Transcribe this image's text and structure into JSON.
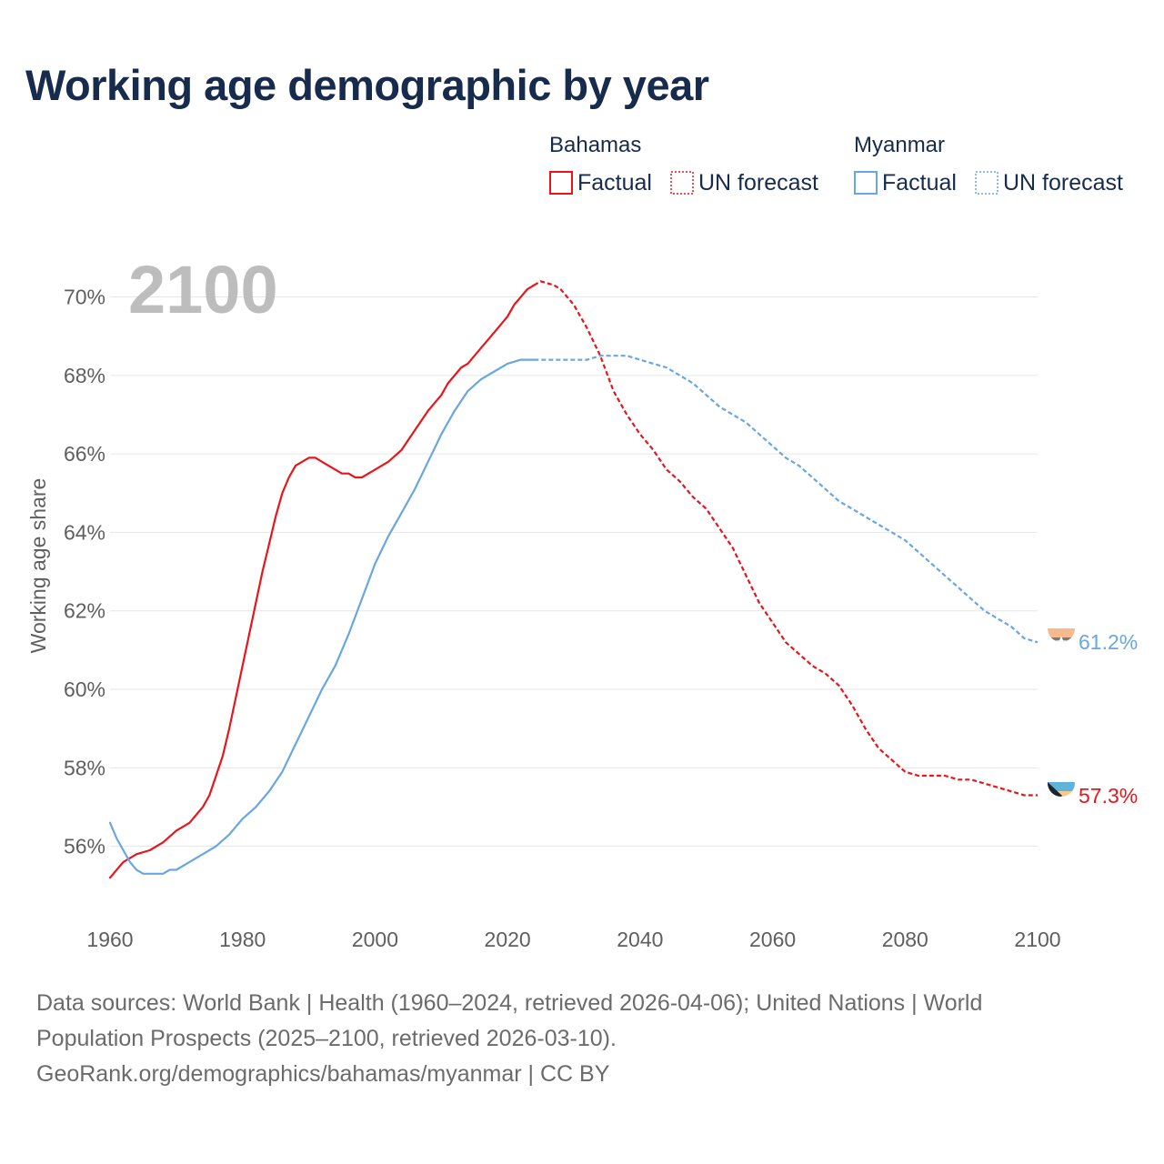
{
  "title": "Working age demographic by year",
  "footer": {
    "line1": "Data sources: World Bank | Health (1960–2024, retrieved 2026-04-06); United Nations | World",
    "line2": "Population Prospects (2025–2100, retrieved 2026-03-10).",
    "line3": "GeoRank.org/demographics/bahamas/myanmar | CC BY"
  },
  "colors": {
    "bahamas": "#e8151b",
    "myanmar": "#6aa6e0",
    "year": "#bdbdbd",
    "axis_text": "#5f5f5f",
    "grid": "#e6e6e6",
    "title": "#172b4d"
  },
  "chart_data": {
    "type": "line",
    "title": "Working age demographic by year",
    "ylabel": "Working age share",
    "xlabel": "",
    "year_label": "2100",
    "xlim": [
      1960,
      2100
    ],
    "ylim": [
      54.3,
      70.8
    ],
    "x_ticks": [
      1960,
      1980,
      2000,
      2020,
      2040,
      2060,
      2080,
      2100
    ],
    "x_tick_labels": [
      "1960",
      "1980",
      "2000",
      "2020",
      "2040",
      "2060",
      "2080",
      "2100"
    ],
    "y_ticks": [
      56,
      58,
      60,
      62,
      64,
      66,
      68,
      70
    ],
    "y_tick_labels": [
      "56%",
      "58%",
      "60%",
      "62%",
      "64%",
      "66%",
      "68%",
      "70%"
    ],
    "legend": {
      "placement": "top-right",
      "groups": [
        {
          "name": "Bahamas",
          "color": "#e8151b",
          "factual": "Factual",
          "forecast": "UN forecast"
        },
        {
          "name": "Myanmar",
          "color": "#6aa6e0",
          "factual": "Factual",
          "forecast": "UN forecast"
        }
      ]
    },
    "series": [
      {
        "name": "Bahamas",
        "color": "#e8151b",
        "end_label": "57.3%",
        "flag": "bahamas",
        "factual_range": [
          1960,
          2024
        ],
        "forecast_range": [
          2025,
          2100
        ],
        "points": [
          [
            1960,
            55.2
          ],
          [
            1962,
            55.6
          ],
          [
            1964,
            55.8
          ],
          [
            1966,
            55.9
          ],
          [
            1968,
            56.1
          ],
          [
            1970,
            56.4
          ],
          [
            1972,
            56.6
          ],
          [
            1974,
            57.0
          ],
          [
            1975,
            57.3
          ],
          [
            1976,
            57.8
          ],
          [
            1977,
            58.3
          ],
          [
            1978,
            59.0
          ],
          [
            1979,
            59.8
          ],
          [
            1980,
            60.6
          ],
          [
            1981,
            61.4
          ],
          [
            1982,
            62.2
          ],
          [
            1983,
            63.0
          ],
          [
            1984,
            63.7
          ],
          [
            1985,
            64.4
          ],
          [
            1986,
            65.0
          ],
          [
            1987,
            65.4
          ],
          [
            1988,
            65.7
          ],
          [
            1990,
            65.9
          ],
          [
            1991,
            65.9
          ],
          [
            1992,
            65.8
          ],
          [
            1994,
            65.6
          ],
          [
            1995,
            65.5
          ],
          [
            1996,
            65.5
          ],
          [
            1997,
            65.4
          ],
          [
            1998,
            65.4
          ],
          [
            2000,
            65.6
          ],
          [
            2002,
            65.8
          ],
          [
            2004,
            66.1
          ],
          [
            2006,
            66.6
          ],
          [
            2008,
            67.1
          ],
          [
            2010,
            67.5
          ],
          [
            2011,
            67.8
          ],
          [
            2013,
            68.2
          ],
          [
            2014,
            68.3
          ],
          [
            2016,
            68.7
          ],
          [
            2018,
            69.1
          ],
          [
            2020,
            69.5
          ],
          [
            2021,
            69.8
          ],
          [
            2023,
            70.2
          ],
          [
            2024,
            70.3
          ],
          [
            2025,
            70.4
          ],
          [
            2027,
            70.3
          ],
          [
            2028,
            70.2
          ],
          [
            2030,
            69.8
          ],
          [
            2032,
            69.2
          ],
          [
            2034,
            68.5
          ],
          [
            2036,
            67.6
          ],
          [
            2038,
            67.0
          ],
          [
            2040,
            66.5
          ],
          [
            2042,
            66.1
          ],
          [
            2044,
            65.6
          ],
          [
            2046,
            65.3
          ],
          [
            2048,
            64.9
          ],
          [
            2050,
            64.6
          ],
          [
            2052,
            64.1
          ],
          [
            2054,
            63.6
          ],
          [
            2056,
            62.9
          ],
          [
            2058,
            62.2
          ],
          [
            2060,
            61.7
          ],
          [
            2062,
            61.2
          ],
          [
            2064,
            60.9
          ],
          [
            2066,
            60.6
          ],
          [
            2068,
            60.4
          ],
          [
            2070,
            60.1
          ],
          [
            2072,
            59.6
          ],
          [
            2074,
            59.0
          ],
          [
            2076,
            58.5
          ],
          [
            2078,
            58.2
          ],
          [
            2080,
            57.9
          ],
          [
            2082,
            57.8
          ],
          [
            2084,
            57.8
          ],
          [
            2086,
            57.8
          ],
          [
            2088,
            57.7
          ],
          [
            2090,
            57.7
          ],
          [
            2092,
            57.6
          ],
          [
            2094,
            57.5
          ],
          [
            2096,
            57.4
          ],
          [
            2098,
            57.3
          ],
          [
            2100,
            57.3
          ]
        ]
      },
      {
        "name": "Myanmar",
        "color": "#6aa6e0",
        "end_label": "61.2%",
        "flag": "myanmar",
        "factual_range": [
          1960,
          2024
        ],
        "forecast_range": [
          2025,
          2100
        ],
        "points": [
          [
            1960,
            56.6
          ],
          [
            1961,
            56.2
          ],
          [
            1962,
            55.9
          ],
          [
            1963,
            55.6
          ],
          [
            1964,
            55.4
          ],
          [
            1965,
            55.3
          ],
          [
            1966,
            55.3
          ],
          [
            1967,
            55.3
          ],
          [
            1968,
            55.3
          ],
          [
            1969,
            55.4
          ],
          [
            1970,
            55.4
          ],
          [
            1972,
            55.6
          ],
          [
            1974,
            55.8
          ],
          [
            1976,
            56.0
          ],
          [
            1978,
            56.3
          ],
          [
            1980,
            56.7
          ],
          [
            1982,
            57.0
          ],
          [
            1984,
            57.4
          ],
          [
            1986,
            57.9
          ],
          [
            1988,
            58.6
          ],
          [
            1990,
            59.3
          ],
          [
            1992,
            60.0
          ],
          [
            1994,
            60.6
          ],
          [
            1996,
            61.4
          ],
          [
            1998,
            62.3
          ],
          [
            2000,
            63.2
          ],
          [
            2002,
            63.9
          ],
          [
            2004,
            64.5
          ],
          [
            2006,
            65.1
          ],
          [
            2008,
            65.8
          ],
          [
            2010,
            66.5
          ],
          [
            2012,
            67.1
          ],
          [
            2014,
            67.6
          ],
          [
            2016,
            67.9
          ],
          [
            2018,
            68.1
          ],
          [
            2020,
            68.3
          ],
          [
            2022,
            68.4
          ],
          [
            2024,
            68.4
          ],
          [
            2026,
            68.4
          ],
          [
            2028,
            68.4
          ],
          [
            2030,
            68.4
          ],
          [
            2032,
            68.4
          ],
          [
            2034,
            68.5
          ],
          [
            2036,
            68.5
          ],
          [
            2038,
            68.5
          ],
          [
            2040,
            68.4
          ],
          [
            2042,
            68.3
          ],
          [
            2044,
            68.2
          ],
          [
            2046,
            68.0
          ],
          [
            2048,
            67.8
          ],
          [
            2050,
            67.5
          ],
          [
            2052,
            67.2
          ],
          [
            2054,
            67.0
          ],
          [
            2056,
            66.8
          ],
          [
            2058,
            66.5
          ],
          [
            2060,
            66.2
          ],
          [
            2062,
            65.9
          ],
          [
            2064,
            65.7
          ],
          [
            2066,
            65.4
          ],
          [
            2068,
            65.1
          ],
          [
            2070,
            64.8
          ],
          [
            2072,
            64.6
          ],
          [
            2074,
            64.4
          ],
          [
            2076,
            64.2
          ],
          [
            2078,
            64.0
          ],
          [
            2080,
            63.8
          ],
          [
            2082,
            63.5
          ],
          [
            2084,
            63.2
          ],
          [
            2086,
            62.9
          ],
          [
            2088,
            62.6
          ],
          [
            2090,
            62.3
          ],
          [
            2092,
            62.0
          ],
          [
            2094,
            61.8
          ],
          [
            2096,
            61.6
          ],
          [
            2098,
            61.3
          ],
          [
            2100,
            61.2
          ]
        ]
      }
    ]
  }
}
